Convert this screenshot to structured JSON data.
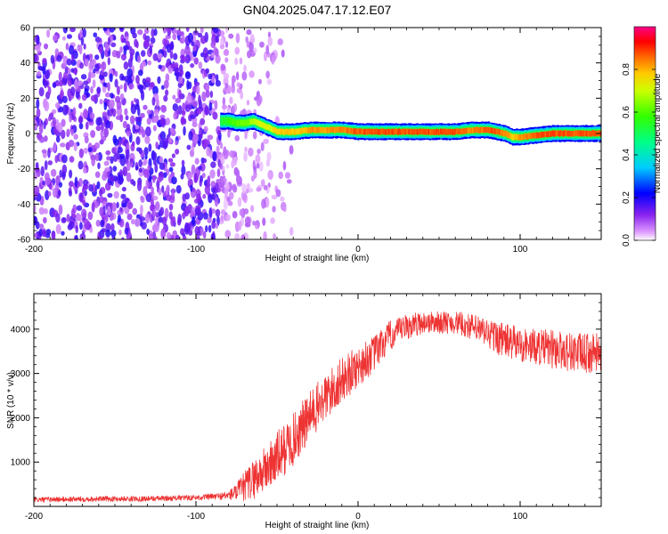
{
  "title": "GN04.2025.047.17.12.E07",
  "chart_data": [
    {
      "type": "heatmap",
      "xlabel": "Height of straight line (km)",
      "ylabel": "Frequency (Hz)",
      "xlim": [
        -200,
        150
      ],
      "ylim": [
        -60,
        60
      ],
      "xticks": [
        -200,
        -100,
        0,
        100
      ],
      "yticks": [
        -60,
        -40,
        -20,
        0,
        20,
        40,
        60
      ],
      "colorbar": {
        "label": "Normalized spectral amplitude",
        "range": [
          0,
          1
        ],
        "ticks": [
          0.0,
          0.2,
          0.4,
          0.6,
          0.8
        ],
        "colors": [
          "#ffffff",
          "#cc88ff",
          "#6600cc",
          "#0000ff",
          "#00ffff",
          "#00ff00",
          "#ffff00",
          "#ff8800",
          "#ff0000",
          "#ff0088"
        ]
      },
      "noise_region": {
        "x_start": -200,
        "x_end": -60,
        "amplitude_range": [
          0.05,
          0.2
        ]
      },
      "signal_trace": {
        "x": [
          -85,
          -80,
          -75,
          -70,
          -65,
          -60,
          -55,
          -50,
          -40,
          -30,
          -20,
          -10,
          0,
          10,
          20,
          30,
          40,
          50,
          60,
          70,
          80,
          85,
          90,
          95,
          100,
          110,
          120,
          130,
          140,
          150
        ],
        "frequency": [
          7,
          7,
          6,
          6,
          7,
          5,
          3,
          1,
          1,
          2,
          2,
          2,
          1,
          1,
          1,
          1,
          1,
          1,
          1,
          2,
          2,
          1,
          0,
          -2,
          -2,
          -1,
          0,
          0,
          0,
          0
        ],
        "amplitude": [
          0.55,
          0.6,
          0.65,
          0.65,
          0.7,
          0.75,
          0.75,
          0.8,
          0.8,
          0.85,
          0.85,
          0.85,
          0.9,
          0.9,
          0.9,
          0.9,
          0.9,
          0.9,
          0.9,
          0.85,
          0.9,
          0.9,
          0.85,
          0.8,
          0.85,
          0.9,
          0.9,
          0.9,
          0.9,
          0.9
        ]
      },
      "grid": false
    },
    {
      "type": "line",
      "xlabel": "Height of straight line (km)",
      "ylabel": "SNR (10 * v/v)",
      "xlim": [
        -200,
        150
      ],
      "ylim": [
        0,
        4800
      ],
      "xticks": [
        -200,
        -100,
        0,
        100
      ],
      "yticks": [
        1000,
        2000,
        3000,
        4000
      ],
      "color": "#ee3333",
      "series": [
        {
          "x": [
            -200,
            -180,
            -160,
            -140,
            -120,
            -100,
            -85,
            -80,
            -75,
            -70,
            -65,
            -60,
            -55,
            -50,
            -45,
            -40,
            -35,
            -30,
            -25,
            -20,
            -15,
            -10,
            -5,
            0,
            5,
            10,
            15,
            20,
            25,
            30,
            40,
            50,
            60,
            70,
            80,
            90,
            100,
            110,
            120,
            130,
            140,
            150
          ],
          "y": [
            150,
            160,
            170,
            170,
            180,
            200,
            230,
            250,
            320,
            450,
            600,
            750,
            900,
            1100,
            1300,
            1500,
            1750,
            2000,
            2250,
            2450,
            2650,
            2850,
            3000,
            3150,
            3300,
            3450,
            3650,
            3850,
            3950,
            4050,
            4150,
            4150,
            4150,
            4050,
            3900,
            3750,
            3650,
            3600,
            3550,
            3500,
            3450,
            3450
          ],
          "noise": [
            60,
            60,
            60,
            60,
            60,
            60,
            80,
            100,
            200,
            350,
            450,
            500,
            550,
            600,
            600,
            600,
            600,
            600,
            550,
            550,
            550,
            500,
            500,
            450,
            450,
            400,
            400,
            350,
            300,
            300,
            250,
            250,
            250,
            300,
            350,
            400,
            400,
            400,
            450,
            450,
            450,
            450
          ]
        }
      ],
      "grid": false
    }
  ]
}
